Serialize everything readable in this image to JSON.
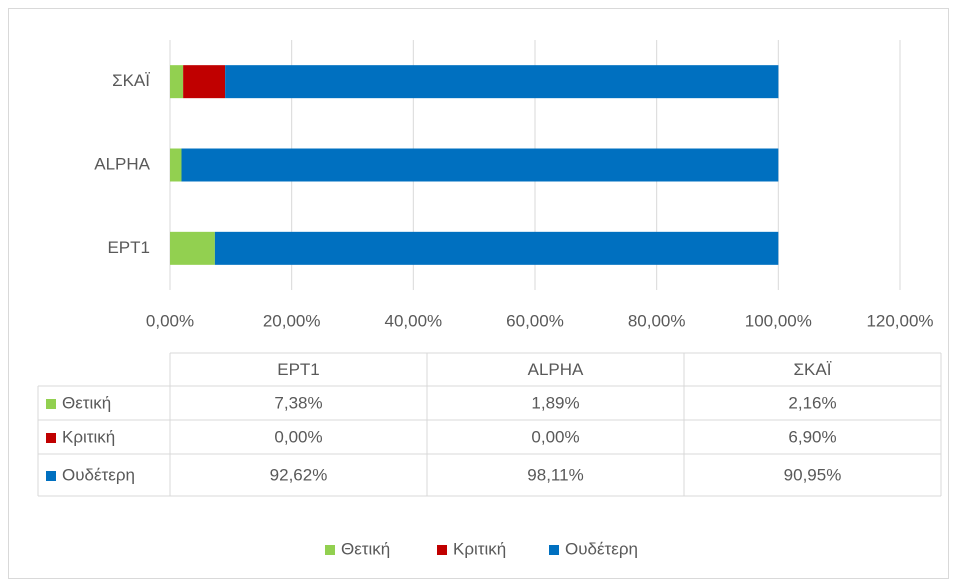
{
  "chart_data": {
    "type": "stacked_bar_horizontal",
    "categories": [
      "ΕΡΤ1",
      "ALPHA",
      "ΣΚΑΪ"
    ],
    "series": [
      {
        "name": "Θετική",
        "color": "#92d050",
        "values": [
          7.38,
          1.89,
          2.16
        ],
        "value_labels": [
          "7,38%",
          "1,89%",
          "2,16%"
        ]
      },
      {
        "name": "Κριτική",
        "color": "#c00000",
        "values": [
          0,
          0,
          6.9
        ],
        "value_labels": [
          "0,00%",
          "0,00%",
          "6,90%"
        ]
      },
      {
        "name": "Ουδέτερη",
        "color": "#0070c0",
        "values": [
          92.62,
          98.11,
          90.95
        ],
        "value_labels": [
          "92,62%",
          "98,11%",
          "90,95%"
        ]
      }
    ],
    "xlim": [
      0,
      120
    ],
    "xticks": [
      {
        "value": 0,
        "label": "0,00%"
      },
      {
        "value": 20,
        "label": "20,00%"
      },
      {
        "value": 40,
        "label": "40,00%"
      },
      {
        "value": 60,
        "label": "60,00%"
      },
      {
        "value": 80,
        "label": "80,00%"
      },
      {
        "value": 100,
        "label": "100,00%"
      },
      {
        "value": 120,
        "label": "120,00%"
      }
    ],
    "grid": true,
    "legend": "bottom",
    "data_table": true
  }
}
